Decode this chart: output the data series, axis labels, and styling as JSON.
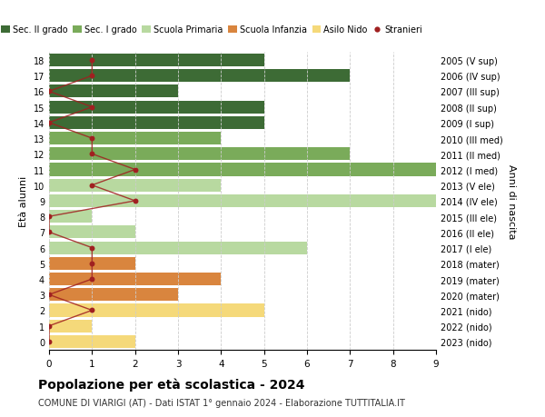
{
  "ages": [
    18,
    17,
    16,
    15,
    14,
    13,
    12,
    11,
    10,
    9,
    8,
    7,
    6,
    5,
    4,
    3,
    2,
    1,
    0
  ],
  "right_labels": [
    "2005 (V sup)",
    "2006 (IV sup)",
    "2007 (III sup)",
    "2008 (II sup)",
    "2009 (I sup)",
    "2010 (III med)",
    "2011 (II med)",
    "2012 (I med)",
    "2013 (V ele)",
    "2014 (IV ele)",
    "2015 (III ele)",
    "2016 (II ele)",
    "2017 (I ele)",
    "2018 (mater)",
    "2019 (mater)",
    "2020 (mater)",
    "2021 (nido)",
    "2022 (nido)",
    "2023 (nido)"
  ],
  "bar_values": [
    5,
    7,
    3,
    5,
    5,
    4,
    7,
    9.5,
    4,
    9,
    1,
    2,
    6,
    2,
    4,
    3,
    5,
    1,
    2
  ],
  "bar_colors": [
    "#3d6b35",
    "#3d6b35",
    "#3d6b35",
    "#3d6b35",
    "#3d6b35",
    "#7aab5a",
    "#7aab5a",
    "#7aab5a",
    "#b8d9a0",
    "#b8d9a0",
    "#b8d9a0",
    "#b8d9a0",
    "#b8d9a0",
    "#d9853e",
    "#d9853e",
    "#d9853e",
    "#f5d97a",
    "#f5d97a",
    "#f5d97a"
  ],
  "stranieri_values": [
    1,
    1,
    0,
    1,
    0,
    1,
    1,
    2,
    1,
    2,
    0,
    0,
    1,
    1,
    1,
    0,
    1,
    0,
    0
  ],
  "stranieri_color": "#a02020",
  "legend_labels": [
    "Sec. II grado",
    "Sec. I grado",
    "Scuola Primaria",
    "Scuola Infanzia",
    "Asilo Nido",
    "Stranieri"
  ],
  "legend_colors": [
    "#3d6b35",
    "#7aab5a",
    "#b8d9a0",
    "#d9853e",
    "#f5d97a",
    "#a02020"
  ],
  "ylabel": "Età alunni",
  "right_ylabel": "Anni di nascita",
  "title": "Popolazione per età scolastica - 2024",
  "subtitle": "COMUNE DI VIARIGI (AT) - Dati ISTAT 1° gennaio 2024 - Elaborazione TUTTITALIA.IT",
  "xlim": [
    0,
    9
  ],
  "background_color": "#ffffff",
  "grid_color": "#cccccc"
}
